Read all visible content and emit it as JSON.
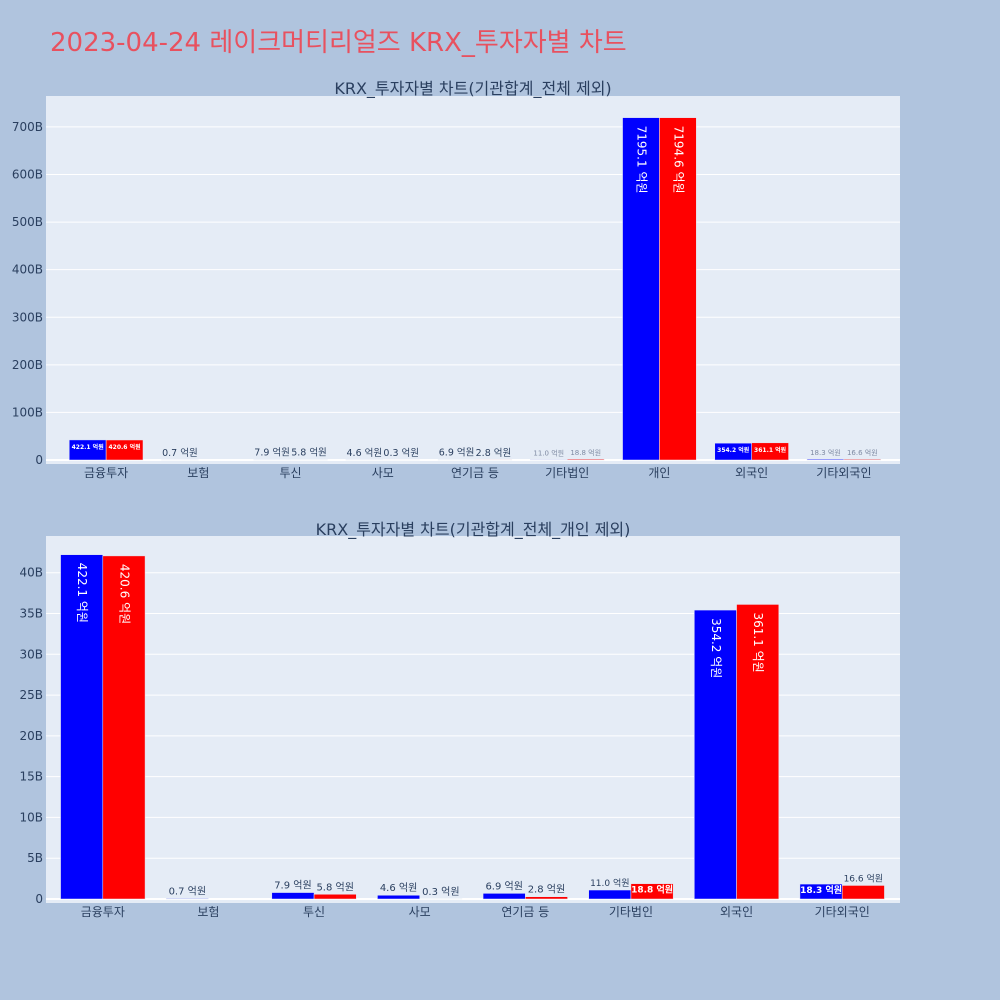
{
  "page": {
    "title": "2023-04-24 레이크머티리얼즈 KRX_투자자별 차트",
    "title_color": "#e8515f",
    "background": "#b0c4de",
    "plot_background": "#e5ecf6"
  },
  "chart_data": [
    {
      "type": "bar",
      "title": "KRX_투자자별 차트(기관합계_전체 제외)",
      "categories": [
        "금융투자",
        "보험",
        "투신",
        "사모",
        "연기금 등",
        "기타법인",
        "개인",
        "외국인",
        "기타외국인"
      ],
      "series": [
        {
          "color": "#0000ff",
          "values": [
            42.21,
            0.07,
            0.79,
            0.46,
            0.69,
            1.1,
            719.51,
            35.42,
            1.83
          ],
          "labels": [
            "422.1 억원",
            "0.7 억원",
            "7.9 억원",
            "4.6 억원",
            "6.9 억원",
            "11.0 억원",
            "7195.1 억원",
            "354.2 억원",
            "18.3 억원"
          ]
        },
        {
          "color": "#ff0000",
          "values": [
            42.06,
            0,
            0.58,
            0.03,
            0.28,
            1.88,
            719.46,
            36.11,
            1.66
          ],
          "labels": [
            "420.6 억원",
            "",
            "5.8 억원",
            "0.3 억원",
            "2.8 억원",
            "18.8 억원",
            "7194.6 억원",
            "361.1 억원",
            "16.6 억원"
          ]
        }
      ],
      "y_ticks": [
        "0",
        "100B",
        "200B",
        "300B",
        "400B",
        "500B",
        "600B",
        "700B"
      ],
      "y_tick_values": [
        0,
        100,
        200,
        300,
        400,
        500,
        600,
        700
      ],
      "ylim": [
        0,
        765
      ],
      "grid": true
    },
    {
      "type": "bar",
      "title": "KRX_투자자별 차트(기관합계_전체_개인 제외)",
      "categories": [
        "금융투자",
        "보험",
        "투신",
        "사모",
        "연기금 등",
        "기타법인",
        "외국인",
        "기타외국인"
      ],
      "series": [
        {
          "color": "#0000ff",
          "values": [
            42.21,
            0.07,
            0.79,
            0.46,
            0.69,
            1.1,
            35.42,
            1.83
          ],
          "labels": [
            "422.1 억원",
            "0.7 억원",
            "7.9 억원",
            "4.6 억원",
            "6.9 억원",
            "11.0 억원",
            "354.2 억원",
            "18.3 억원"
          ]
        },
        {
          "color": "#ff0000",
          "values": [
            42.06,
            0,
            0.58,
            0.03,
            0.28,
            1.88,
            36.11,
            1.66
          ],
          "labels": [
            "420.6 억원",
            "",
            "5.8 억원",
            "0.3 억원",
            "2.8 억원",
            "18.8 억원",
            "361.1 억원",
            "16.6 억원"
          ]
        }
      ],
      "y_ticks": [
        "0",
        "5B",
        "10B",
        "15B",
        "20B",
        "25B",
        "30B",
        "35B",
        "40B"
      ],
      "y_tick_values": [
        0,
        5,
        10,
        15,
        20,
        25,
        30,
        35,
        40
      ],
      "ylim": [
        0,
        44.5
      ],
      "grid": true
    }
  ]
}
